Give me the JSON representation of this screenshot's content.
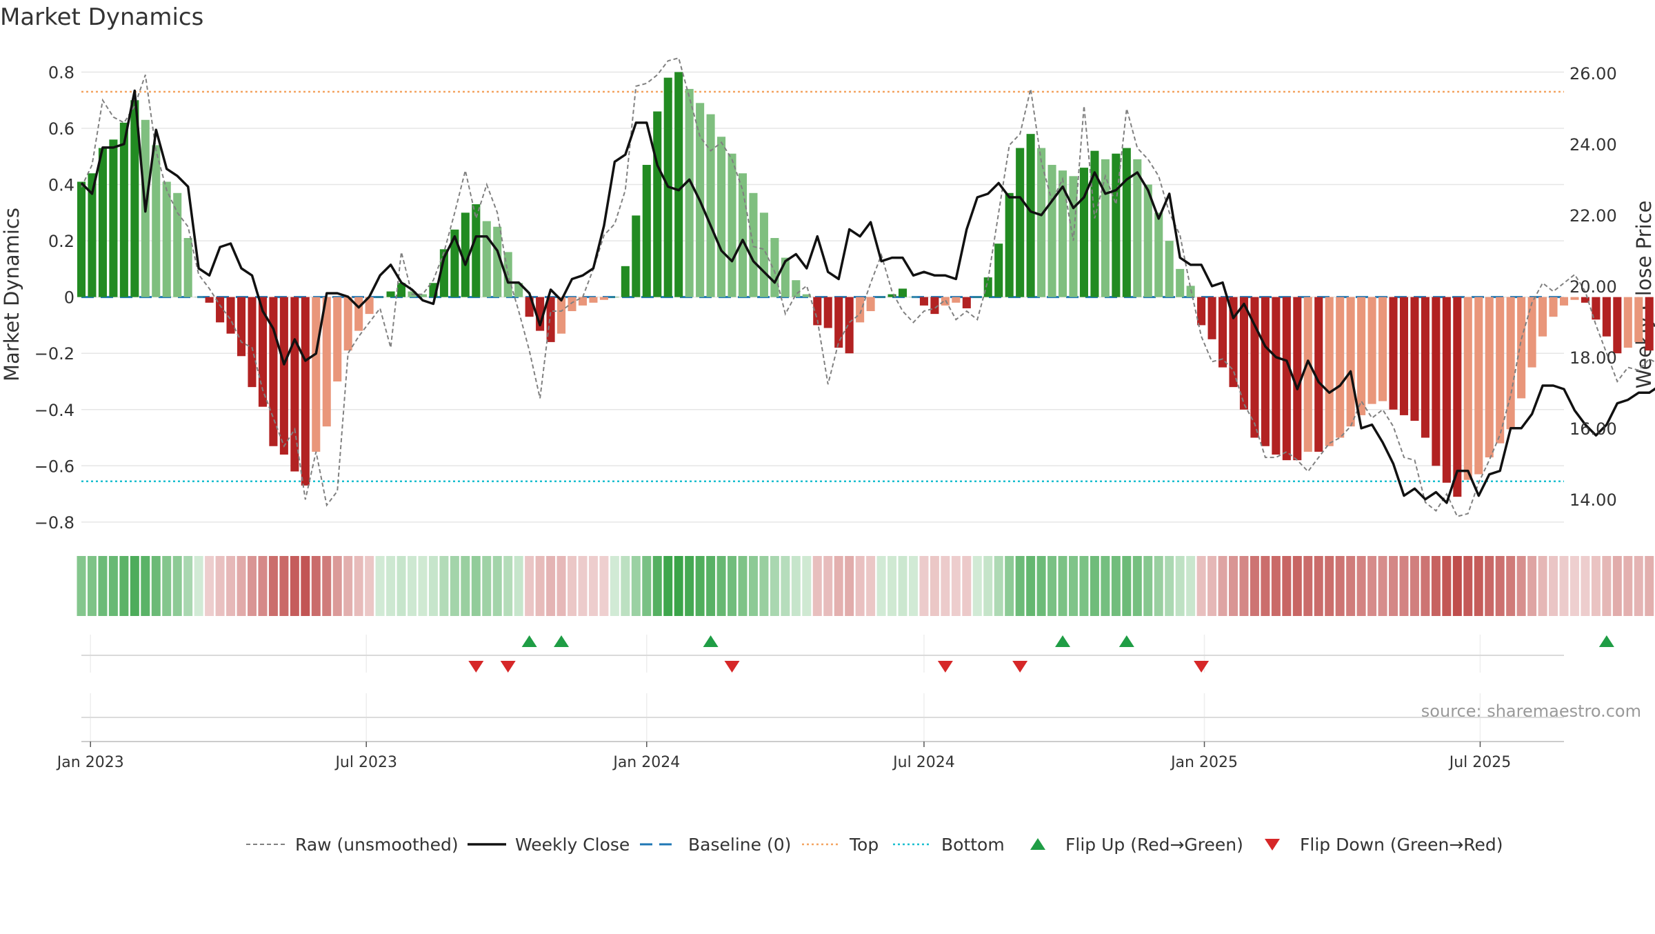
{
  "chart_data": {
    "type": "bar",
    "title": "Market Dynamics",
    "ylabel": "Market Dynamics",
    "y2label": "Weekly Close Price",
    "ylim": [
      -0.82,
      0.86
    ],
    "y2lim": [
      13.2,
      26.5
    ],
    "yticks": [
      -0.8,
      -0.6,
      -0.4,
      -0.2,
      0,
      0.2,
      0.4,
      0.6,
      0.8
    ],
    "ytick_labels": [
      "−0.8",
      "−0.6",
      "−0.4",
      "−0.2",
      "0",
      "0.2",
      "0.4",
      "0.6",
      "0.8"
    ],
    "y2ticks": [
      14,
      16,
      18,
      20,
      22,
      24,
      26
    ],
    "y2tick_labels": [
      "14.00",
      "16.00",
      "18.00",
      "20.00",
      "22.00",
      "24.00",
      "26.00"
    ],
    "xrange": [
      "2022-12-26",
      "2025-08-25"
    ],
    "xticks": [
      "2023-01-01",
      "2023-07-01",
      "2024-01-01",
      "2024-07-01",
      "2025-01-01",
      "2025-07-01"
    ],
    "xtick_labels": [
      "Jan 2023",
      "Jul 2023",
      "Jan 2024",
      "Jul 2024",
      "Jan 2025",
      "Jul 2025"
    ],
    "reference_lines": {
      "top": 0.73,
      "bottom": -0.655,
      "baseline": 0
    },
    "grid": true,
    "week_start": "2022-12-26",
    "series": [
      {
        "name": "Market Dynamics",
        "type": "bar",
        "values": [
          0.41,
          0.44,
          0.53,
          0.56,
          0.62,
          0.7,
          0.63,
          0.54,
          0.41,
          0.37,
          0.21,
          0.0,
          -0.02,
          -0.09,
          -0.13,
          -0.21,
          -0.32,
          -0.39,
          -0.53,
          -0.56,
          -0.62,
          -0.67,
          -0.55,
          -0.46,
          -0.3,
          -0.19,
          -0.12,
          -0.06,
          0.0,
          0.02,
          0.05,
          0.02,
          0.01,
          0.05,
          0.17,
          0.24,
          0.3,
          0.33,
          0.27,
          0.25,
          0.16,
          0.05,
          -0.07,
          -0.12,
          -0.16,
          -0.13,
          -0.05,
          -0.03,
          -0.02,
          -0.01,
          0.0,
          0.11,
          0.29,
          0.47,
          0.66,
          0.78,
          0.8,
          0.74,
          0.69,
          0.65,
          0.57,
          0.51,
          0.44,
          0.37,
          0.3,
          0.21,
          0.14,
          0.06,
          0.01,
          -0.1,
          -0.11,
          -0.18,
          -0.2,
          -0.09,
          -0.05,
          0.0,
          0.01,
          0.03,
          0.0,
          -0.03,
          -0.06,
          -0.03,
          -0.02,
          -0.04,
          0.0,
          0.07,
          0.19,
          0.37,
          0.53,
          0.58,
          0.53,
          0.47,
          0.45,
          0.43,
          0.46,
          0.52,
          0.49,
          0.51,
          0.53,
          0.49,
          0.4,
          0.3,
          0.2,
          0.1,
          0.04,
          -0.1,
          -0.15,
          -0.25,
          -0.32,
          -0.4,
          -0.5,
          -0.53,
          -0.56,
          -0.58,
          -0.58,
          -0.55,
          -0.55,
          -0.53,
          -0.5,
          -0.46,
          -0.42,
          -0.38,
          -0.37,
          -0.4,
          -0.42,
          -0.44,
          -0.5,
          -0.6,
          -0.66,
          -0.71,
          -0.65,
          -0.63,
          -0.57,
          -0.52,
          -0.47,
          -0.36,
          -0.25,
          -0.14,
          -0.07,
          -0.03,
          -0.01,
          -0.02,
          -0.08,
          -0.14,
          -0.2,
          -0.18,
          -0.16,
          -0.19,
          -0.18,
          -0.22,
          -0.29
        ]
      },
      {
        "name": "Raw (unsmoothed)",
        "type": "line",
        "values": [
          0.39,
          0.47,
          0.7,
          0.64,
          0.62,
          0.68,
          0.79,
          0.52,
          0.38,
          0.3,
          0.25,
          0.08,
          0.03,
          -0.03,
          -0.08,
          -0.16,
          -0.18,
          -0.33,
          -0.43,
          -0.53,
          -0.47,
          -0.72,
          -0.55,
          -0.74,
          -0.69,
          -0.2,
          -0.14,
          -0.09,
          -0.04,
          -0.18,
          0.16,
          0.01,
          0.01,
          0.06,
          0.16,
          0.3,
          0.45,
          0.28,
          0.4,
          0.3,
          0.08,
          -0.05,
          -0.19,
          -0.36,
          -0.05,
          -0.05,
          -0.02,
          0.0,
          0.1,
          0.22,
          0.26,
          0.38,
          0.75,
          0.76,
          0.79,
          0.84,
          0.85,
          0.71,
          0.57,
          0.52,
          0.55,
          0.49,
          0.38,
          0.18,
          0.17,
          0.09,
          -0.06,
          0.01,
          0.04,
          -0.08,
          -0.31,
          -0.16,
          -0.09,
          -0.06,
          0.05,
          0.15,
          0.02,
          -0.05,
          -0.09,
          -0.05,
          -0.04,
          -0.01,
          -0.08,
          -0.05,
          -0.08,
          0.06,
          0.3,
          0.54,
          0.58,
          0.74,
          0.48,
          0.34,
          0.42,
          0.2,
          0.68,
          0.28,
          0.43,
          0.33,
          0.67,
          0.53,
          0.49,
          0.43,
          0.3,
          0.22,
          0.03,
          -0.14,
          -0.23,
          -0.22,
          -0.26,
          -0.38,
          -0.45,
          -0.57,
          -0.57,
          -0.55,
          -0.58,
          -0.62,
          -0.57,
          -0.52,
          -0.5,
          -0.46,
          -0.37,
          -0.43,
          -0.4,
          -0.46,
          -0.57,
          -0.58,
          -0.73,
          -0.76,
          -0.7,
          -0.78,
          -0.77,
          -0.66,
          -0.58,
          -0.49,
          -0.35,
          -0.15,
          -0.02,
          0.05,
          0.02,
          0.05,
          0.08,
          0.02,
          -0.1,
          -0.2,
          -0.3,
          -0.25,
          -0.26,
          -0.22,
          -0.24,
          -0.34,
          -0.36
        ]
      },
      {
        "name": "Weekly Close",
        "type": "line",
        "axis": "right",
        "values": [
          22.9,
          22.6,
          23.9,
          23.9,
          24.0,
          25.5,
          22.1,
          24.4,
          23.3,
          23.1,
          22.8,
          20.5,
          20.3,
          21.1,
          21.2,
          20.5,
          20.3,
          19.3,
          18.8,
          17.8,
          18.5,
          17.9,
          18.1,
          19.8,
          19.8,
          19.7,
          19.4,
          19.7,
          20.3,
          20.6,
          20.1,
          19.9,
          19.6,
          19.5,
          20.8,
          21.4,
          20.6,
          21.4,
          21.4,
          21.0,
          20.1,
          20.1,
          19.8,
          18.9,
          19.9,
          19.6,
          20.2,
          20.3,
          20.5,
          21.7,
          23.5,
          23.7,
          24.6,
          24.6,
          23.4,
          22.8,
          22.7,
          23.0,
          22.4,
          21.7,
          21.0,
          20.7,
          21.3,
          20.7,
          20.4,
          20.1,
          20.7,
          20.9,
          20.5,
          21.4,
          20.4,
          20.2,
          21.6,
          21.4,
          21.8,
          20.7,
          20.8,
          20.8,
          20.3,
          20.4,
          20.3,
          20.3,
          20.2,
          21.6,
          22.5,
          22.6,
          22.9,
          22.5,
          22.5,
          22.1,
          22.0,
          22.4,
          22.8,
          22.2,
          22.5,
          23.2,
          22.6,
          22.7,
          23.0,
          23.2,
          22.7,
          21.9,
          22.6,
          20.8,
          20.6,
          20.6,
          20.0,
          20.1,
          19.1,
          19.5,
          18.9,
          18.3,
          18.0,
          17.9,
          17.1,
          17.9,
          17.3,
          17.0,
          17.2,
          17.6,
          16.0,
          16.1,
          15.6,
          15.0,
          14.1,
          14.3,
          14.0,
          14.2,
          13.9,
          14.8,
          14.8,
          14.1,
          14.7,
          14.8,
          16.0,
          16.0,
          16.4,
          17.2,
          17.2,
          17.1,
          16.5,
          16.1,
          15.8,
          16.1,
          16.7,
          16.8,
          17.0,
          17.0,
          17.2,
          16.6
        ]
      }
    ],
    "regime_strip": {
      "name": "Regime",
      "description_colors": "green = positive regime, red = negative regime; intensity follows magnitude"
    },
    "flip_up_weeks": [
      42,
      45,
      59,
      92,
      98,
      143
    ],
    "flip_down_weeks": [
      37,
      40,
      61,
      81,
      88,
      105
    ],
    "legend": {
      "placement": "bottom",
      "entries": [
        {
          "label": "Raw (unsmoothed)",
          "style": "dotted-gray"
        },
        {
          "label": "Weekly Close",
          "style": "solid-black"
        },
        {
          "label": "Baseline (0)",
          "style": "dashed-blue"
        },
        {
          "label": "Top",
          "style": "dotted-orange"
        },
        {
          "label": "Bottom",
          "style": "dotted-cyan"
        },
        {
          "label": "Flip Up (Red→Green)",
          "style": "triangle-up-green"
        },
        {
          "label": "Flip Down (Green→Red)",
          "style": "triangle-down-red"
        }
      ]
    },
    "source_note": "source: sharemaestro.com",
    "colors": {
      "strong_green": "#228B22",
      "light_green": "#7FBF7F",
      "strong_red": "#B22222",
      "light_red": "#E9967A",
      "raw_line": "#808080",
      "close_line": "#111111",
      "baseline": "#1f77b4",
      "top": "#F4A460",
      "bottom": "#17BECF",
      "flip_up": "#1f9d45",
      "flip_down": "#d62728",
      "grid": "#e6e6e6"
    }
  }
}
